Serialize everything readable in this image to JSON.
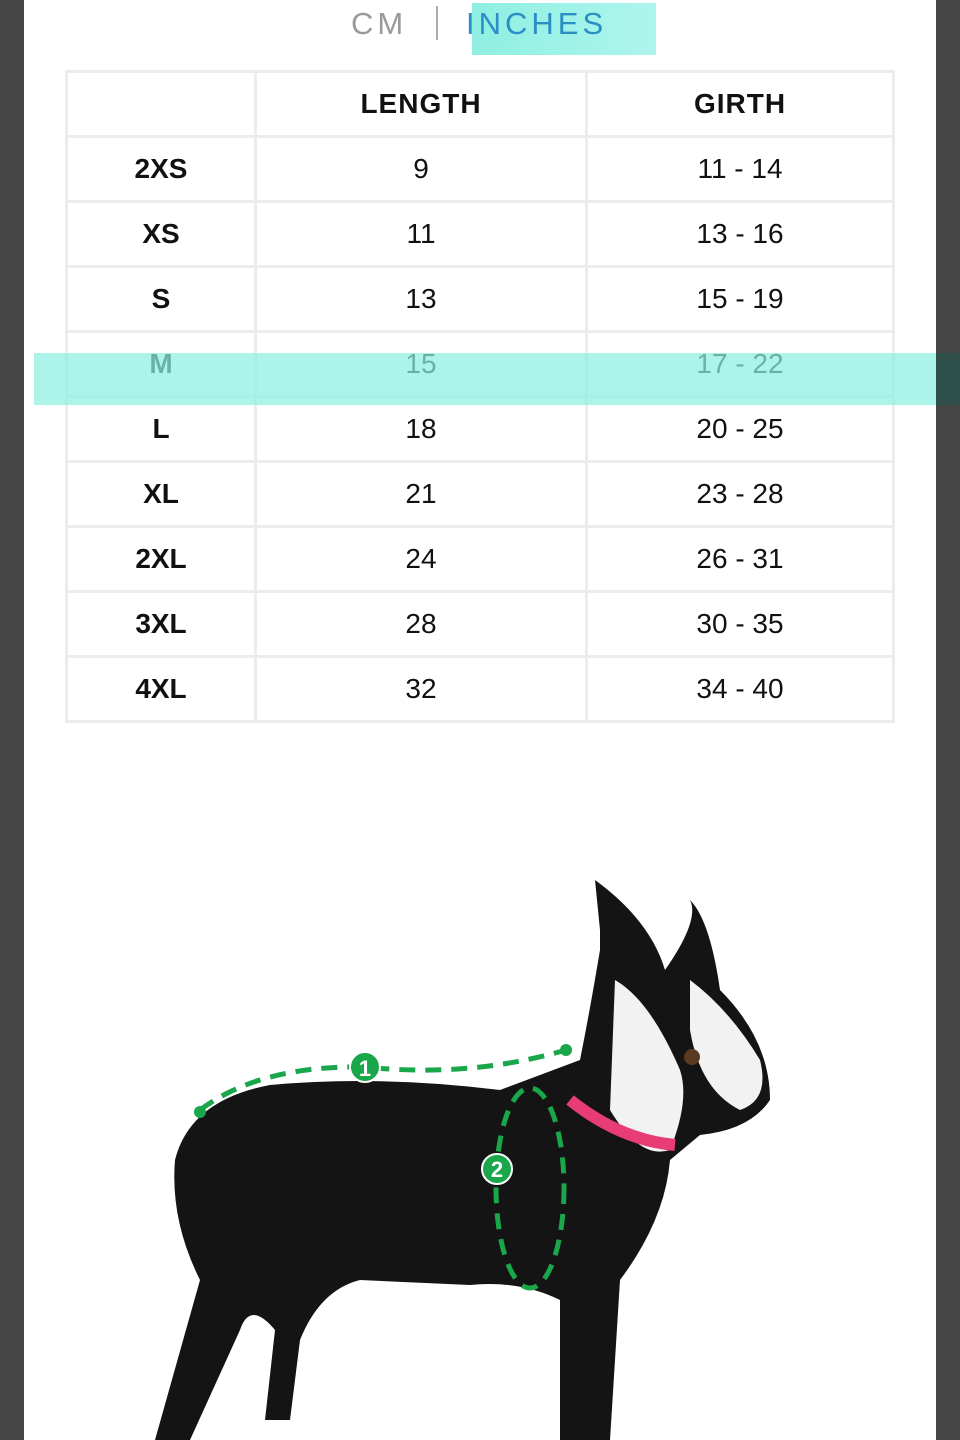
{
  "unit_toggle": {
    "cm_label": "CM",
    "inches_label": "INCHES",
    "selected": "INCHES"
  },
  "table": {
    "headers": [
      "",
      "LENGTH",
      "GIRTH"
    ],
    "rows": [
      {
        "size": "2XS",
        "length": "9",
        "girth": "11 - 14"
      },
      {
        "size": "XS",
        "length": "11",
        "girth": "13 - 16"
      },
      {
        "size": "S",
        "length": "13",
        "girth": "15 - 19"
      },
      {
        "size": "M",
        "length": "15",
        "girth": "17 - 22"
      },
      {
        "size": "L",
        "length": "18",
        "girth": "20 - 25"
      },
      {
        "size": "XL",
        "length": "21",
        "girth": "23 - 28"
      },
      {
        "size": "2XL",
        "length": "24",
        "girth": "26 - 31"
      },
      {
        "size": "3XL",
        "length": "28",
        "girth": "30 - 35"
      },
      {
        "size": "4XL",
        "length": "32",
        "girth": "34 - 40"
      }
    ],
    "highlighted_size": "M",
    "highlight_color": "#8ff0e2"
  },
  "diagram": {
    "marker_1": "1",
    "marker_2": "2",
    "measure_color": "#1aa64b"
  }
}
